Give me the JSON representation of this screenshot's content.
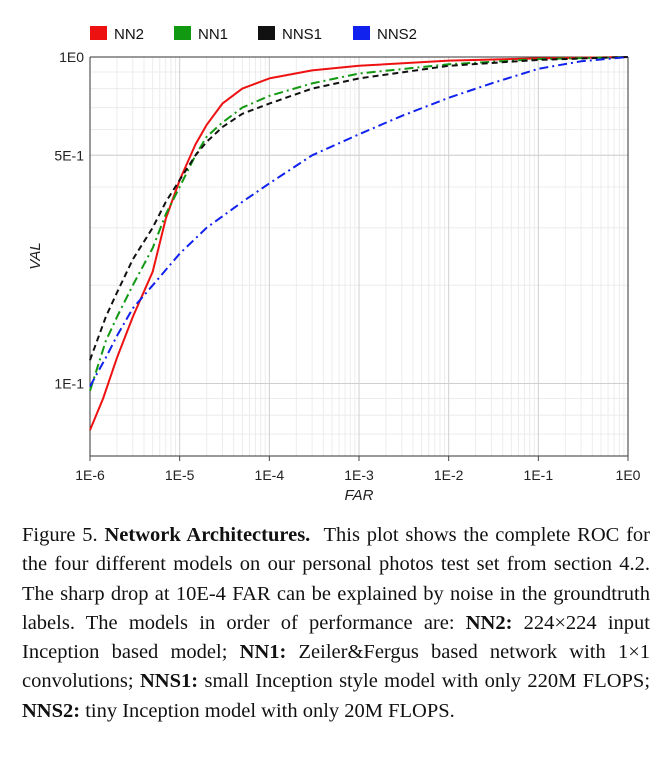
{
  "chart_data": {
    "type": "line",
    "x_scale": "log",
    "y_scale": "log",
    "xlabel": "FAR",
    "ylabel": "VAL",
    "xlim": [
      1e-06,
      1
    ],
    "ylim": [
      0.06,
      1
    ],
    "x_ticks": [
      {
        "value": 1e-06,
        "label": "1E-6"
      },
      {
        "value": 1e-05,
        "label": "1E-5"
      },
      {
        "value": 0.0001,
        "label": "1E-4"
      },
      {
        "value": 0.001,
        "label": "1E-3"
      },
      {
        "value": 0.01,
        "label": "1E-2"
      },
      {
        "value": 0.1,
        "label": "1E-1"
      },
      {
        "value": 1,
        "label": "1E0"
      }
    ],
    "y_ticks": [
      {
        "value": 0.1,
        "label": "1E-1"
      },
      {
        "value": 0.5,
        "label": "5E-1"
      },
      {
        "value": 1,
        "label": "1E0"
      }
    ],
    "grid": true,
    "legend_position": "top",
    "series": [
      {
        "name": "NN2",
        "color": "#ee1111",
        "dash": "solid",
        "points": [
          [
            1e-06,
            0.072
          ],
          [
            1.4e-06,
            0.09
          ],
          [
            2e-06,
            0.12
          ],
          [
            3e-06,
            0.16
          ],
          [
            5e-06,
            0.22
          ],
          [
            7e-06,
            0.32
          ],
          [
            1e-05,
            0.42
          ],
          [
            1.5e-05,
            0.54
          ],
          [
            2e-05,
            0.62
          ],
          [
            3e-05,
            0.72
          ],
          [
            5e-05,
            0.8
          ],
          [
            0.0001,
            0.86
          ],
          [
            0.0003,
            0.91
          ],
          [
            0.001,
            0.94
          ],
          [
            0.01,
            0.975
          ],
          [
            0.1,
            0.99
          ],
          [
            1,
            1.0
          ]
        ]
      },
      {
        "name": "NN1",
        "color": "#119911",
        "dash": "dashdot",
        "points": [
          [
            1e-06,
            0.095
          ],
          [
            1.5e-06,
            0.135
          ],
          [
            2e-06,
            0.16
          ],
          [
            3e-06,
            0.2
          ],
          [
            5e-06,
            0.26
          ],
          [
            7e-06,
            0.33
          ],
          [
            1e-05,
            0.4
          ],
          [
            1.5e-05,
            0.5
          ],
          [
            2e-05,
            0.57
          ],
          [
            3e-05,
            0.63
          ],
          [
            5e-05,
            0.7
          ],
          [
            0.0001,
            0.76
          ],
          [
            0.0003,
            0.83
          ],
          [
            0.001,
            0.89
          ],
          [
            0.01,
            0.95
          ],
          [
            0.1,
            0.985
          ],
          [
            1,
            1.0
          ]
        ]
      },
      {
        "name": "NNS1",
        "color": "#111111",
        "dash": "dashed",
        "points": [
          [
            1e-06,
            0.118
          ],
          [
            1.5e-06,
            0.16
          ],
          [
            2e-06,
            0.19
          ],
          [
            3e-06,
            0.24
          ],
          [
            5e-06,
            0.3
          ],
          [
            7e-06,
            0.36
          ],
          [
            1e-05,
            0.42
          ],
          [
            1.5e-05,
            0.5
          ],
          [
            2e-05,
            0.55
          ],
          [
            3e-05,
            0.61
          ],
          [
            5e-05,
            0.67
          ],
          [
            0.0001,
            0.72
          ],
          [
            0.0003,
            0.8
          ],
          [
            0.001,
            0.86
          ],
          [
            0.01,
            0.94
          ],
          [
            0.1,
            0.98
          ],
          [
            1,
            1.0
          ]
        ]
      },
      {
        "name": "NNS2",
        "color": "#1122ee",
        "dash": "dashdot",
        "points": [
          [
            1e-06,
            0.098
          ],
          [
            1.5e-06,
            0.12
          ],
          [
            2e-06,
            0.14
          ],
          [
            3e-06,
            0.17
          ],
          [
            5e-06,
            0.2
          ],
          [
            1e-05,
            0.25
          ],
          [
            2e-05,
            0.3
          ],
          [
            5e-05,
            0.36
          ],
          [
            0.0001,
            0.41
          ],
          [
            0.0003,
            0.5
          ],
          [
            0.001,
            0.58
          ],
          [
            0.003,
            0.66
          ],
          [
            0.01,
            0.75
          ],
          [
            0.03,
            0.83
          ],
          [
            0.1,
            0.92
          ],
          [
            0.3,
            0.97
          ],
          [
            1,
            1.0
          ]
        ]
      }
    ]
  },
  "caption": {
    "label": "Figure 5.",
    "title": "Network Architectures.",
    "body_1": "This plot shows the complete ROC for the four different models on our personal photos test set from section 4.2. The sharp drop at 10E-4 FAR can be explained by noise in the groundtruth labels. The models in order of performance are:",
    "nn2_label": "NN2:",
    "nn2_text": "224×224 input Inception based model;",
    "nn1_label": "NN1:",
    "nn1_text": "Zeiler&Fergus based network with 1×1 convolutions;",
    "nns1_label": "NNS1:",
    "nns1_text": "small Inception style model with only 220M FLOPS;",
    "nns2_label": "NNS2:",
    "nns2_text": "tiny Inception model with only 20M FLOPS."
  }
}
